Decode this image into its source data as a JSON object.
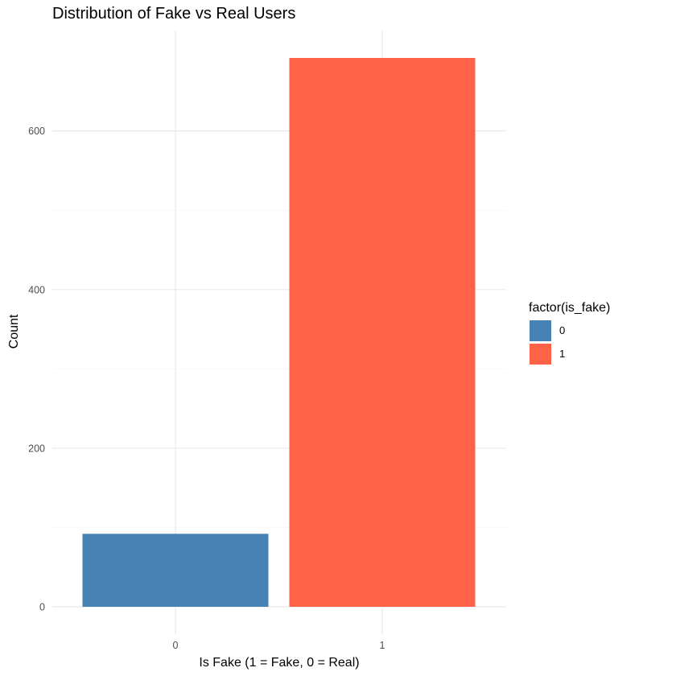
{
  "chart_data": {
    "type": "bar",
    "title": "Distribution of Fake vs Real Users",
    "xlabel": "Is Fake (1 = Fake, 0 = Real)",
    "ylabel": "Count",
    "categories": [
      "0",
      "1"
    ],
    "values": [
      92,
      692
    ],
    "ylim": [
      0,
      692
    ],
    "y_ticks": [
      0,
      200,
      400,
      600
    ],
    "y_tick_labels": [
      "0",
      "200",
      "400",
      "600"
    ],
    "grid": true,
    "legend": {
      "title": "factor(is_fake)",
      "placement": "right",
      "entries": [
        {
          "label": "0",
          "color": "#4682B4"
        },
        {
          "label": "1",
          "color": "#FF6347"
        }
      ]
    },
    "colors": [
      "#4682B4",
      "#FF6347"
    ]
  }
}
